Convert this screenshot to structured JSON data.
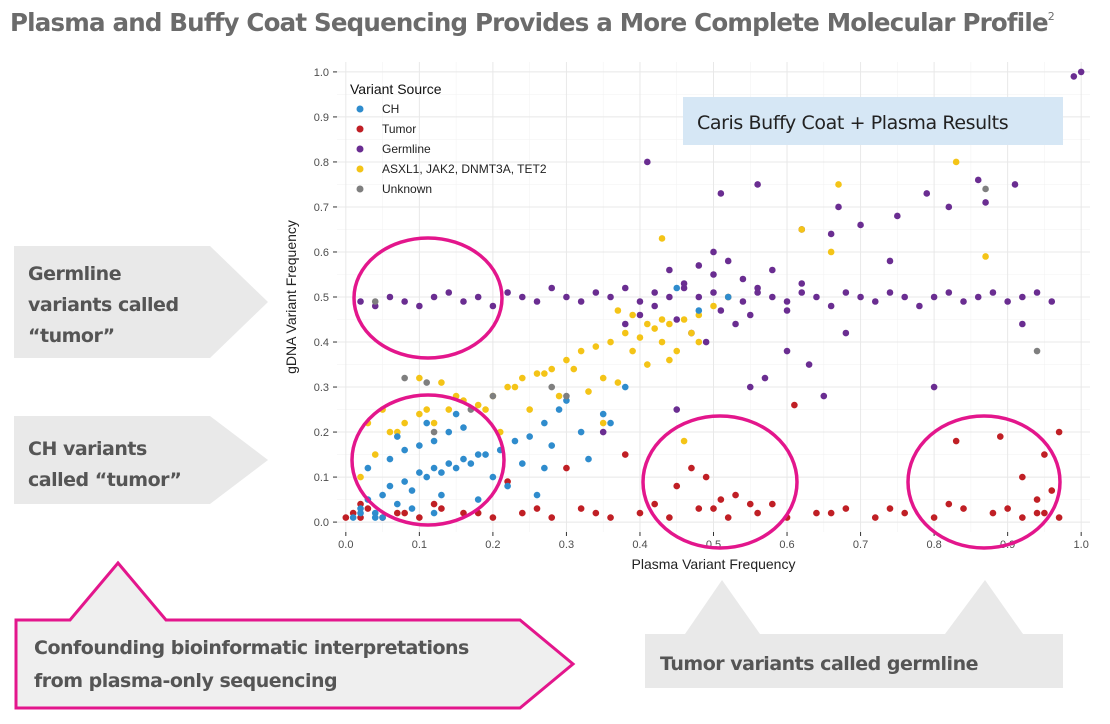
{
  "slide": {
    "title": "Plasma and Buffy Coat Sequencing Provides a More Complete Molecular Profile",
    "title_superscript": "2"
  },
  "chart_data": {
    "type": "scatter",
    "xlabel": "Plasma Variant Frequency",
    "ylabel": "gDNA Variant Frequency",
    "xlim": [
      0,
      1.0
    ],
    "ylim": [
      0,
      1.0
    ],
    "x_ticks": [
      "0.0",
      "0.1",
      "0.2",
      "0.3",
      "0.4",
      "0.5",
      "0.6",
      "0.7",
      "0.8",
      "0.9",
      "1.0"
    ],
    "y_ticks": [
      "0.0",
      "0.1",
      "0.2",
      "0.3",
      "0.4",
      "0.5",
      "0.6",
      "0.7",
      "0.8",
      "0.9",
      "1.0"
    ],
    "grid": true,
    "legend": {
      "title": "Variant Source",
      "position": "top-left",
      "entries": [
        {
          "name": "CH",
          "color": "#2f8ccd"
        },
        {
          "name": "Tumor",
          "color": "#c01f25"
        },
        {
          "name": "Germline",
          "color": "#6a2d91"
        },
        {
          "name": "ASXL1, JAK2, DNMT3A, TET2",
          "color": "#f4c417"
        },
        {
          "name": "Unknown",
          "color": "#7f7f7f"
        }
      ]
    },
    "series": [
      {
        "name": "CH",
        "color": "#2f8ccd",
        "x": [
          0.02,
          0.03,
          0.05,
          0.06,
          0.08,
          0.1,
          0.12,
          0.14,
          0.16,
          0.18,
          0.04,
          0.07,
          0.09,
          0.11,
          0.13,
          0.15,
          0.17,
          0.19,
          0.21,
          0.23,
          0.25,
          0.27,
          0.29,
          0.03,
          0.06,
          0.08,
          0.1,
          0.12,
          0.14,
          0.16,
          0.05,
          0.09,
          0.13,
          0.2,
          0.24,
          0.28,
          0.32,
          0.35,
          0.38,
          0.3,
          0.27,
          0.33,
          0.36,
          0.22,
          0.26,
          0.01,
          0.02,
          0.04,
          0.12,
          0.18,
          0.07,
          0.11,
          0.15,
          0.48,
          0.52,
          0.45
        ],
        "y": [
          0.03,
          0.05,
          0.06,
          0.08,
          0.09,
          0.11,
          0.12,
          0.13,
          0.14,
          0.15,
          0.02,
          0.04,
          0.07,
          0.1,
          0.11,
          0.12,
          0.13,
          0.15,
          0.16,
          0.18,
          0.19,
          0.22,
          0.25,
          0.12,
          0.14,
          0.16,
          0.17,
          0.18,
          0.2,
          0.21,
          0.01,
          0.03,
          0.06,
          0.1,
          0.13,
          0.17,
          0.2,
          0.24,
          0.3,
          0.27,
          0.12,
          0.14,
          0.22,
          0.08,
          0.06,
          0.01,
          0.02,
          0.01,
          0.02,
          0.05,
          0.19,
          0.22,
          0.24,
          0.47,
          0.5,
          0.52
        ]
      },
      {
        "name": "Tumor",
        "color": "#c01f25",
        "x": [
          0.0,
          0.01,
          0.02,
          0.03,
          0.05,
          0.08,
          0.1,
          0.13,
          0.16,
          0.2,
          0.24,
          0.28,
          0.32,
          0.36,
          0.4,
          0.44,
          0.48,
          0.52,
          0.56,
          0.6,
          0.64,
          0.68,
          0.72,
          0.76,
          0.8,
          0.84,
          0.88,
          0.92,
          0.95,
          0.97,
          0.02,
          0.07,
          0.12,
          0.18,
          0.26,
          0.34,
          0.42,
          0.5,
          0.58,
          0.66,
          0.74,
          0.82,
          0.9,
          0.94,
          0.49,
          0.51,
          0.47,
          0.45,
          0.53,
          0.55,
          0.83,
          0.89,
          0.92,
          0.95,
          0.96,
          0.97,
          0.94,
          0.61,
          0.38,
          0.3,
          0.22
        ],
        "y": [
          0.01,
          0.02,
          0.01,
          0.03,
          0.01,
          0.02,
          0.01,
          0.03,
          0.02,
          0.01,
          0.02,
          0.01,
          0.03,
          0.01,
          0.02,
          0.01,
          0.03,
          0.01,
          0.02,
          0.01,
          0.02,
          0.03,
          0.01,
          0.02,
          0.01,
          0.03,
          0.02,
          0.01,
          0.02,
          0.01,
          0.04,
          0.02,
          0.04,
          0.02,
          0.03,
          0.02,
          0.04,
          0.03,
          0.04,
          0.02,
          0.03,
          0.04,
          0.03,
          0.02,
          0.1,
          0.05,
          0.12,
          0.08,
          0.06,
          0.04,
          0.18,
          0.19,
          0.1,
          0.15,
          0.07,
          0.2,
          0.05,
          0.26,
          0.15,
          0.12,
          0.09
        ]
      },
      {
        "name": "Germline",
        "color": "#6a2d91",
        "x": [
          0.02,
          0.04,
          0.06,
          0.08,
          0.1,
          0.12,
          0.14,
          0.16,
          0.18,
          0.2,
          0.22,
          0.24,
          0.26,
          0.28,
          0.3,
          0.32,
          0.34,
          0.36,
          0.38,
          0.4,
          0.42,
          0.44,
          0.46,
          0.48,
          0.5,
          0.52,
          0.54,
          0.56,
          0.58,
          0.6,
          0.62,
          0.64,
          0.66,
          0.68,
          0.7,
          0.72,
          0.74,
          0.76,
          0.78,
          0.8,
          0.82,
          0.84,
          0.86,
          0.88,
          0.9,
          0.92,
          0.94,
          0.96,
          0.45,
          0.47,
          0.49,
          0.51,
          0.53,
          0.55,
          0.5,
          0.48,
          0.52,
          0.46,
          0.54,
          0.44,
          0.56,
          0.5,
          0.42,
          0.58,
          0.4,
          0.6,
          0.38,
          0.62,
          0.66,
          0.7,
          0.74,
          0.41,
          0.51,
          0.56,
          0.62,
          0.67,
          0.82,
          0.86,
          0.87,
          0.91,
          0.75,
          0.79,
          0.57,
          0.63,
          0.65,
          0.99,
          1.0,
          0.35,
          0.45,
          0.55,
          0.6,
          0.68,
          0.8,
          0.92
        ],
        "y": [
          0.49,
          0.48,
          0.5,
          0.49,
          0.48,
          0.5,
          0.51,
          0.49,
          0.5,
          0.48,
          0.51,
          0.5,
          0.49,
          0.52,
          0.5,
          0.49,
          0.51,
          0.5,
          0.52,
          0.49,
          0.51,
          0.5,
          0.52,
          0.5,
          0.51,
          0.5,
          0.49,
          0.51,
          0.5,
          0.49,
          0.51,
          0.5,
          0.48,
          0.51,
          0.5,
          0.49,
          0.51,
          0.5,
          0.48,
          0.5,
          0.51,
          0.49,
          0.5,
          0.51,
          0.49,
          0.5,
          0.51,
          0.49,
          0.45,
          0.42,
          0.4,
          0.47,
          0.44,
          0.46,
          0.55,
          0.57,
          0.58,
          0.53,
          0.54,
          0.56,
          0.52,
          0.6,
          0.48,
          0.56,
          0.46,
          0.47,
          0.44,
          0.53,
          0.64,
          0.66,
          0.58,
          0.8,
          0.73,
          0.75,
          0.65,
          0.7,
          0.7,
          0.76,
          0.71,
          0.75,
          0.68,
          0.73,
          0.32,
          0.35,
          0.28,
          0.99,
          1.0,
          0.2,
          0.25,
          0.3,
          0.38,
          0.42,
          0.3,
          0.44
        ]
      },
      {
        "name": "ASXL1, JAK2, DNMT3A, TET2",
        "color": "#f4c417",
        "x": [
          0.02,
          0.04,
          0.06,
          0.08,
          0.1,
          0.12,
          0.14,
          0.16,
          0.18,
          0.2,
          0.22,
          0.24,
          0.26,
          0.28,
          0.3,
          0.32,
          0.34,
          0.36,
          0.38,
          0.4,
          0.42,
          0.44,
          0.46,
          0.48,
          0.5,
          0.03,
          0.07,
          0.11,
          0.15,
          0.19,
          0.23,
          0.27,
          0.31,
          0.35,
          0.39,
          0.43,
          0.47,
          0.33,
          0.37,
          0.41,
          0.29,
          0.25,
          0.21,
          0.45,
          0.41,
          0.39,
          0.44,
          0.48,
          0.52,
          0.37,
          0.43,
          0.62,
          0.66,
          0.67,
          0.83,
          0.87,
          0.1,
          0.05,
          0.13,
          0.43,
          0.46,
          0.35
        ],
        "y": [
          0.1,
          0.15,
          0.2,
          0.22,
          0.24,
          0.22,
          0.25,
          0.27,
          0.26,
          0.28,
          0.3,
          0.32,
          0.33,
          0.34,
          0.36,
          0.38,
          0.39,
          0.4,
          0.42,
          0.41,
          0.43,
          0.44,
          0.45,
          0.46,
          0.48,
          0.22,
          0.2,
          0.25,
          0.28,
          0.25,
          0.3,
          0.33,
          0.34,
          0.32,
          0.38,
          0.4,
          0.42,
          0.29,
          0.31,
          0.35,
          0.28,
          0.25,
          0.2,
          0.38,
          0.44,
          0.46,
          0.36,
          0.4,
          0.5,
          0.47,
          0.45,
          0.65,
          0.6,
          0.75,
          0.8,
          0.59,
          0.32,
          0.25,
          0.31,
          0.63,
          0.18,
          0.22
        ]
      },
      {
        "name": "Unknown",
        "color": "#7f7f7f",
        "x": [
          0.08,
          0.12,
          0.28,
          0.3,
          0.2,
          0.17,
          0.11,
          0.94,
          0.87,
          0.04
        ],
        "y": [
          0.32,
          0.2,
          0.3,
          0.28,
          0.28,
          0.25,
          0.31,
          0.38,
          0.74,
          0.49
        ]
      }
    ]
  },
  "annotations": {
    "banner": "Caris Buffy Coat + Plasma Results",
    "callout_germline": [
      "Germline",
      "variants called",
      "“tumor”"
    ],
    "callout_ch": [
      "CH variants",
      "called “tumor”"
    ],
    "callout_confounding": [
      "Confounding bioinformatic interpretations",
      "from plasma-only sequencing"
    ],
    "callout_tumor_germline": "Tumor variants called germline",
    "circle_color": "#e3168c"
  }
}
